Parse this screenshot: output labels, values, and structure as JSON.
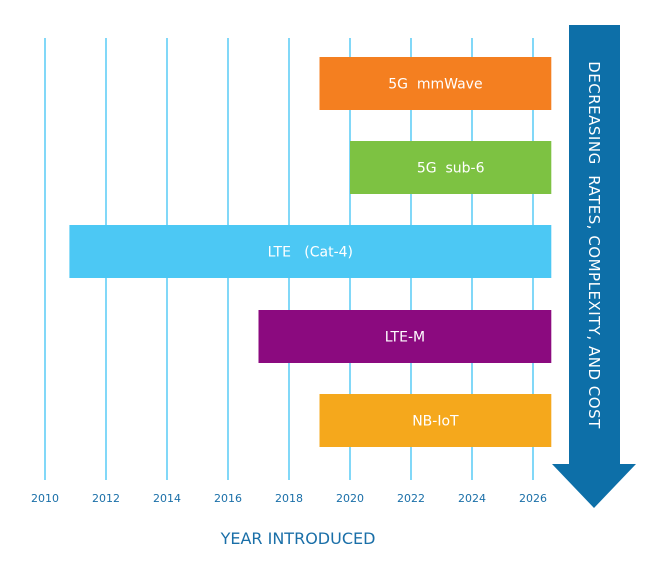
{
  "chart_data": {
    "type": "bar",
    "orientation": "horizontal-timeline",
    "xlabel": "YEAR INTRODUCED",
    "xlim": [
      2010,
      2026.6
    ],
    "x_ticks": [
      2010,
      2012,
      2014,
      2016,
      2018,
      2020,
      2022,
      2024,
      2026
    ],
    "grid": "vertical",
    "series": [
      {
        "name": "5G  mmWave",
        "start": 2019,
        "end": 2026.6,
        "color": "#f47f20"
      },
      {
        "name": "5G  sub-6",
        "start": 2020,
        "end": 2026.6,
        "color": "#7dc242"
      },
      {
        "name": "LTE   (Cat-4)",
        "start": 2010.8,
        "end": 2026.6,
        "color": "#4cc8f4"
      },
      {
        "name": "LTE-M",
        "start": 2017,
        "end": 2026.6,
        "color": "#8b0a7f"
      },
      {
        "name": "NB-IoT",
        "start": 2019,
        "end": 2026.6,
        "color": "#f5a81c"
      }
    ],
    "annotation": "DECREASING  RATES, COMPLEXITY, AND COST",
    "colors": {
      "grid": "#4cc8f4",
      "axis_text": "#1a6fa8",
      "arrow": "#0d6fa8"
    }
  }
}
